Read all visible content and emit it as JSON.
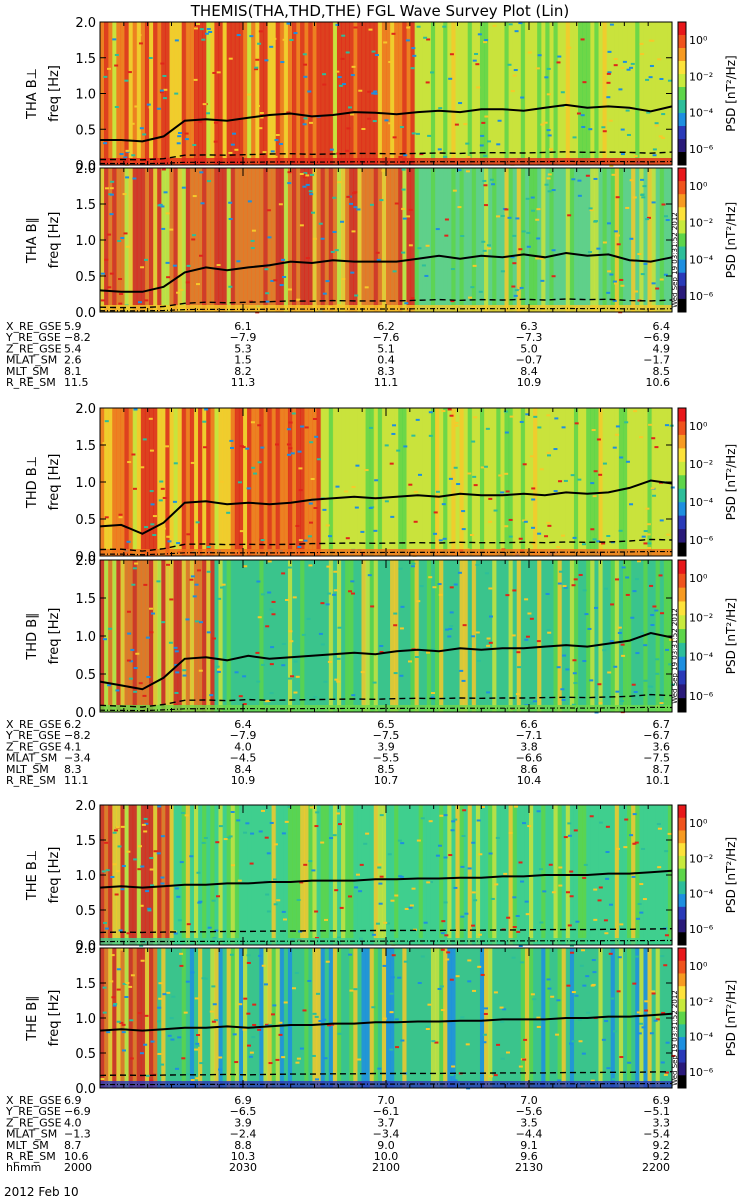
{
  "title": "THEMIS(THA,THD,THE) FGL Wave Survey Plot (Lin)",
  "date_label": "2012 Feb 10",
  "colorbar": {
    "label": "PSD [nT²/Hz]",
    "ticks": [
      "10⁰",
      "10⁻²",
      "10⁻⁴",
      "10⁻⁶"
    ],
    "colors": [
      "#e8171a",
      "#f0531d",
      "#f79a21",
      "#fde23a",
      "#c8ea3d",
      "#5dd54a",
      "#2dbe9a",
      "#1e8fe0",
      "#2a3ab8",
      "#2a1a7a",
      "#000000"
    ]
  },
  "stamp": "Wed Sep 19 03:31:52 2012",
  "chart_data": [
    {
      "type": "heatmap",
      "probe": "THA",
      "panels": [
        {
          "ylabel": "THA B⊥",
          "ylabel2": "freq [Hz]",
          "ylim": [
            0,
            2
          ],
          "yticks": [
            "2.0",
            "1.5",
            "1.0",
            "0.5",
            "0.0"
          ],
          "baseline": "red",
          "red_until": 0.55,
          "fce_line": [
            0.35,
            0.35,
            0.33,
            0.4,
            0.62,
            0.64,
            0.62,
            0.66,
            0.7,
            0.72,
            0.68,
            0.7,
            0.74,
            0.73,
            0.71,
            0.74,
            0.76,
            0.74,
            0.78,
            0.78,
            0.76,
            0.8,
            0.84,
            0.8,
            0.82,
            0.8,
            0.75,
            0.82
          ]
        },
        {
          "ylabel": "THA B∥",
          "ylabel2": "freq [Hz]",
          "ylim": [
            0,
            2
          ],
          "yticks": [
            "2.0",
            "1.5",
            "1.0",
            "0.5",
            "0.0"
          ],
          "baseline": "yellow",
          "red_until": 0.55,
          "fce_line": [
            0.3,
            0.28,
            0.28,
            0.35,
            0.55,
            0.62,
            0.58,
            0.62,
            0.65,
            0.7,
            0.68,
            0.72,
            0.7,
            0.7,
            0.7,
            0.74,
            0.78,
            0.74,
            0.78,
            0.76,
            0.8,
            0.76,
            0.82,
            0.78,
            0.8,
            0.72,
            0.7,
            0.76
          ]
        }
      ],
      "rows": [
        {
          "label": "X_RE_GSE",
          "values": [
            "5.9",
            "6.1",
            "6.2",
            "6.3",
            "6.4"
          ]
        },
        {
          "label": "Y_RE_GSE",
          "values": [
            "−8.2",
            "−7.9",
            "−7.6",
            "−7.3",
            "−6.9"
          ]
        },
        {
          "label": "Z_RE_GSE",
          "values": [
            "5.4",
            "5.3",
            "5.1",
            "5.0",
            "4.9"
          ]
        },
        {
          "label": "MLAT_SM",
          "values": [
            "2.6",
            "1.5",
            "0.4",
            "−0.7",
            "−1.7"
          ]
        },
        {
          "label": "MLT_SM",
          "values": [
            "8.1",
            "8.2",
            "8.3",
            "8.4",
            "8.5"
          ]
        },
        {
          "label": "R_RE_SM",
          "values": [
            "11.5",
            "11.3",
            "11.1",
            "10.9",
            "10.6"
          ]
        }
      ]
    },
    {
      "type": "heatmap",
      "probe": "THD",
      "panels": [
        {
          "ylabel": "THD B⊥",
          "ylabel2": "freq [Hz]",
          "ylim": [
            0,
            2
          ],
          "yticks": [
            "2.0",
            "1.5",
            "1.0",
            "0.5",
            "0.0"
          ],
          "baseline": "orange",
          "red_until": 0.38,
          "fce_line": [
            0.4,
            0.42,
            0.3,
            0.45,
            0.72,
            0.74,
            0.7,
            0.72,
            0.7,
            0.72,
            0.76,
            0.78,
            0.8,
            0.78,
            0.8,
            0.82,
            0.8,
            0.84,
            0.82,
            0.82,
            0.84,
            0.82,
            0.86,
            0.84,
            0.86,
            0.92,
            1.02,
            0.98
          ]
        },
        {
          "ylabel": "THD B∥",
          "ylabel2": "freq [Hz]",
          "ylim": [
            0,
            2
          ],
          "yticks": [
            "2.0",
            "1.5",
            "1.0",
            "0.5",
            "0.0"
          ],
          "baseline": "green",
          "red_until": 0.2,
          "fce_line": [
            0.4,
            0.35,
            0.3,
            0.45,
            0.7,
            0.72,
            0.68,
            0.74,
            0.7,
            0.72,
            0.74,
            0.76,
            0.78,
            0.76,
            0.8,
            0.82,
            0.8,
            0.84,
            0.82,
            0.84,
            0.84,
            0.86,
            0.88,
            0.86,
            0.9,
            0.94,
            1.04,
            0.98
          ]
        }
      ],
      "rows": [
        {
          "label": "X_RE_GSE",
          "values": [
            "6.2",
            "6.4",
            "6.5",
            "6.6",
            "6.7"
          ]
        },
        {
          "label": "Y_RE_GSE",
          "values": [
            "−8.2",
            "−7.9",
            "−7.5",
            "−7.1",
            "−6.7"
          ]
        },
        {
          "label": "Z_RE_GSE",
          "values": [
            "4.1",
            "4.0",
            "3.9",
            "3.8",
            "3.6"
          ]
        },
        {
          "label": "MLAT_SM",
          "values": [
            "−3.4",
            "−4.5",
            "−5.5",
            "−6.6",
            "−7.5"
          ]
        },
        {
          "label": "MLT_SM",
          "values": [
            "8.3",
            "8.4",
            "8.5",
            "8.6",
            "8.7"
          ]
        },
        {
          "label": "R_RE_SM",
          "values": [
            "11.1",
            "10.9",
            "10.7",
            "10.4",
            "10.1"
          ]
        }
      ]
    },
    {
      "type": "heatmap",
      "probe": "THE",
      "panels": [
        {
          "ylabel": "THE B⊥",
          "ylabel2": "freq [Hz]",
          "ylim": [
            0,
            2
          ],
          "yticks": [
            "2.0",
            "1.5",
            "1.0",
            "0.5",
            "0.0"
          ],
          "baseline": "cyan",
          "red_until": 0.12,
          "fce_line": [
            0.82,
            0.84,
            0.82,
            0.84,
            0.86,
            0.86,
            0.88,
            0.88,
            0.9,
            0.9,
            0.92,
            0.92,
            0.92,
            0.94,
            0.94,
            0.95,
            0.95,
            0.96,
            0.96,
            0.98,
            0.98,
            1.0,
            1.0,
            1.0,
            1.02,
            1.02,
            1.04,
            1.06
          ]
        },
        {
          "ylabel": "THE B∥",
          "ylabel2": "freq [Hz]",
          "ylim": [
            0,
            2
          ],
          "yticks": [
            "2.0",
            "1.5",
            "1.0",
            "0.5",
            "0.0"
          ],
          "baseline": "blue",
          "red_until": 0.1,
          "fce_line": [
            0.82,
            0.84,
            0.82,
            0.84,
            0.86,
            0.86,
            0.88,
            0.86,
            0.88,
            0.9,
            0.9,
            0.92,
            0.92,
            0.94,
            0.94,
            0.95,
            0.95,
            0.96,
            0.96,
            0.98,
            0.98,
            0.98,
            1.0,
            1.0,
            1.02,
            1.02,
            1.04,
            1.06
          ]
        }
      ],
      "rows": [
        {
          "label": "X_RE_GSE",
          "values": [
            "6.9",
            "6.9",
            "7.0",
            "7.0",
            "6.9"
          ]
        },
        {
          "label": "Y_RE_GSE",
          "values": [
            "−6.9",
            "−6.5",
            "−6.1",
            "−5.6",
            "−5.1"
          ]
        },
        {
          "label": "Z_RE_GSE",
          "values": [
            "4.0",
            "3.9",
            "3.7",
            "3.5",
            "3.3"
          ]
        },
        {
          "label": "MLAT_SM",
          "values": [
            "−1.3",
            "−2.4",
            "−3.4",
            "−4.4",
            "−5.4"
          ]
        },
        {
          "label": "MLT_SM",
          "values": [
            "8.7",
            "8.8",
            "9.0",
            "9.1",
            "9.2"
          ]
        },
        {
          "label": "R_RE_SM",
          "values": [
            "10.6",
            "10.3",
            "10.0",
            "9.6",
            "9.2"
          ]
        },
        {
          "label": "hhmm",
          "values": [
            "2000",
            "2030",
            "2100",
            "2130",
            "2200"
          ]
        }
      ]
    }
  ]
}
